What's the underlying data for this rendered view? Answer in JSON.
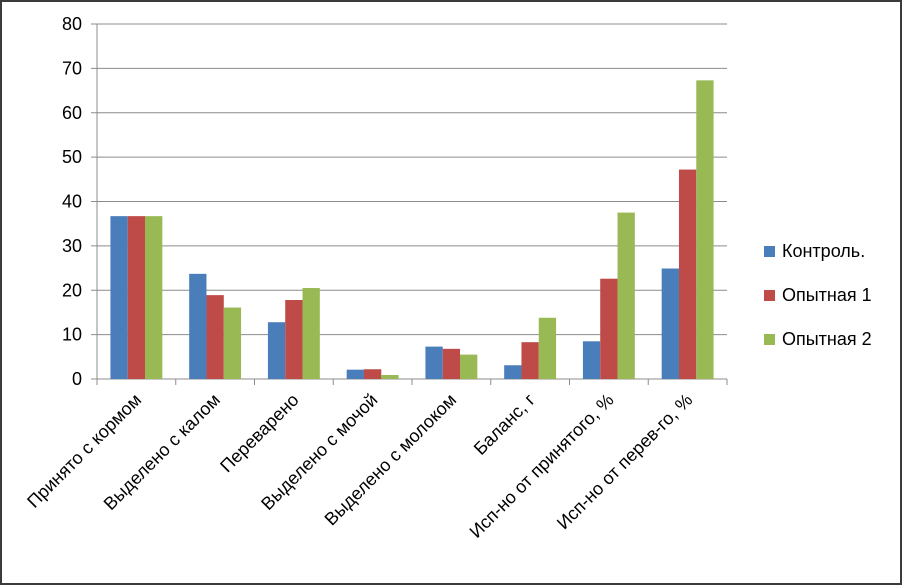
{
  "chart_data": {
    "type": "bar",
    "title": "",
    "xlabel": "",
    "ylabel": "",
    "ylim": [
      0,
      80
    ],
    "yticks": [
      0,
      10,
      20,
      30,
      40,
      50,
      60,
      70,
      80
    ],
    "grid": true,
    "legend_position": "right",
    "categories": [
      "Принято с кормом",
      "Выделено с калом",
      "Переварено",
      "Выделено с мочой",
      "Выделено с молоком",
      "Баланс, г",
      "Исп-но от принятого, %",
      "Исп-но от перев-го,  %"
    ],
    "series": [
      {
        "name": "Контроль.",
        "color": "#4a7ebb",
        "values": [
          36.7,
          23.7,
          12.8,
          2.1,
          7.3,
          3.1,
          8.5,
          24.9
        ]
      },
      {
        "name": "Опытная 1",
        "color": "#be4b48",
        "values": [
          36.7,
          18.9,
          17.8,
          2.2,
          6.8,
          8.3,
          22.6,
          47.2
        ]
      },
      {
        "name": "Опытная 2",
        "color": "#98b954",
        "values": [
          36.7,
          16.1,
          20.5,
          0.9,
          5.5,
          13.8,
          37.5,
          67.3
        ]
      }
    ]
  }
}
